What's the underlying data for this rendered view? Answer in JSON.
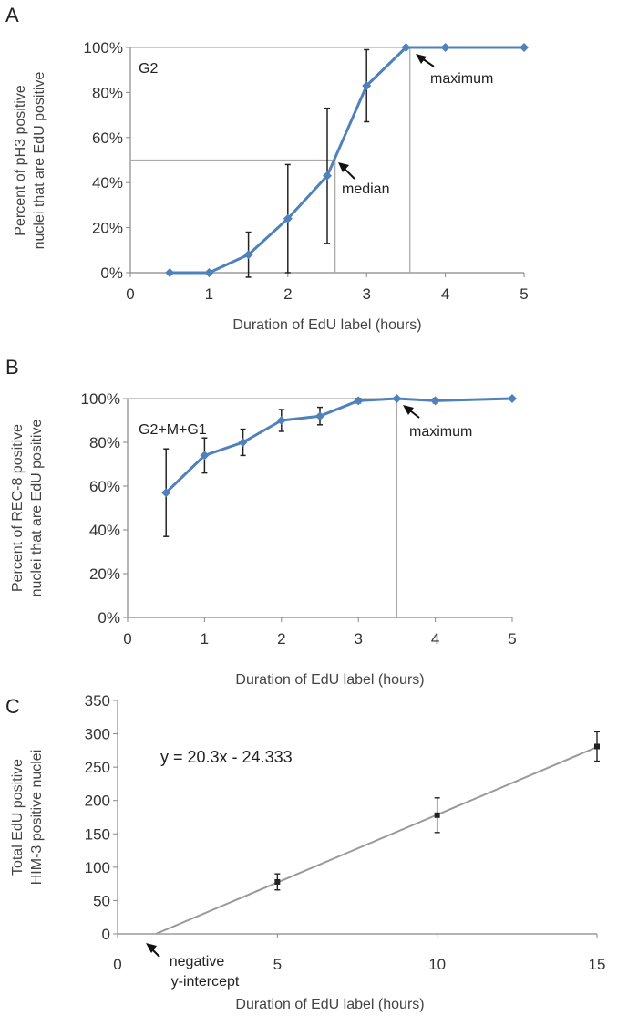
{
  "chart_data": [
    {
      "type": "line",
      "panel_label": "A",
      "inset_label": "G2",
      "xlabel": "Duration of EdU label (hours)",
      "ylabel_line1": "Percent of pH3 positive",
      "ylabel_line2": "nuclei that are EdU positive",
      "xlim": [
        0,
        5
      ],
      "ylim": [
        0,
        100
      ],
      "x_ticks": [
        "0",
        "1",
        "2",
        "3",
        "4",
        "5"
      ],
      "y_ticks": [
        "0%",
        "20%",
        "40%",
        "60%",
        "80%",
        "100%"
      ],
      "series": [
        {
          "name": "G2",
          "color": "#4f81bd",
          "x": [
            0.5,
            1,
            1.5,
            2,
            2.5,
            3,
            3.5,
            4,
            5
          ],
          "y": [
            0,
            0,
            8,
            24,
            43,
            83,
            100,
            100,
            100
          ],
          "err": [
            0,
            0,
            10,
            24,
            30,
            16,
            0,
            0,
            0
          ]
        }
      ],
      "guides": [
        {
          "kind": "median",
          "x": 2.6,
          "y": 50
        },
        {
          "kind": "maximum",
          "x": 3.55,
          "y": 100
        }
      ],
      "annotations": [
        {
          "text": "median",
          "x": 2.6,
          "y": 43
        },
        {
          "text": "maximum",
          "x": 3.55,
          "y": 100
        }
      ]
    },
    {
      "type": "line",
      "panel_label": "B",
      "inset_label": "G2+M+G1",
      "xlabel": "Duration of EdU label (hours)",
      "ylabel_line1": "Percent of REC-8 positive",
      "ylabel_line2": "nuclei that are EdU positive",
      "xlim": [
        0,
        5
      ],
      "ylim": [
        0,
        100
      ],
      "x_ticks": [
        "0",
        "1",
        "2",
        "3",
        "4",
        "5"
      ],
      "y_ticks": [
        "0%",
        "20%",
        "40%",
        "60%",
        "80%",
        "100%"
      ],
      "series": [
        {
          "name": "G2+M+G1",
          "color": "#4f81bd",
          "x": [
            0.5,
            1,
            1.5,
            2,
            2.5,
            3,
            3.5,
            4,
            5
          ],
          "y": [
            57,
            74,
            80,
            90,
            92,
            99,
            100,
            99,
            100
          ],
          "err": [
            20,
            8,
            6,
            5,
            4,
            1,
            0,
            1,
            0
          ]
        }
      ],
      "guides": [
        {
          "kind": "maximum",
          "x": 3.5,
          "y": 100
        }
      ],
      "annotations": [
        {
          "text": "maximum",
          "x": 3.5,
          "y": 100
        }
      ]
    },
    {
      "type": "scatter",
      "panel_label": "C",
      "xlabel": "Duration of EdU label (hours)",
      "ylabel_line1": "Total EdU positive",
      "ylabel_line2": "HIM-3 positive nuclei",
      "xlim": [
        0,
        15
      ],
      "ylim": [
        0,
        350
      ],
      "x_ticks": [
        "0",
        "5",
        "10",
        "15"
      ],
      "y_ticks": [
        "0",
        "50",
        "100",
        "150",
        "200",
        "250",
        "300",
        "350"
      ],
      "equation": "y = 20.3x - 24.333",
      "trendline": {
        "slope": 20.3,
        "intercept": -24.333,
        "color": "#9a9a9a"
      },
      "series": [
        {
          "name": "HIM-3",
          "x": [
            5,
            10,
            15
          ],
          "y": [
            78,
            178,
            281
          ],
          "err": [
            12,
            26,
            22
          ]
        }
      ],
      "annotation_line1": "negative",
      "annotation_line2": "y-intercept"
    }
  ]
}
